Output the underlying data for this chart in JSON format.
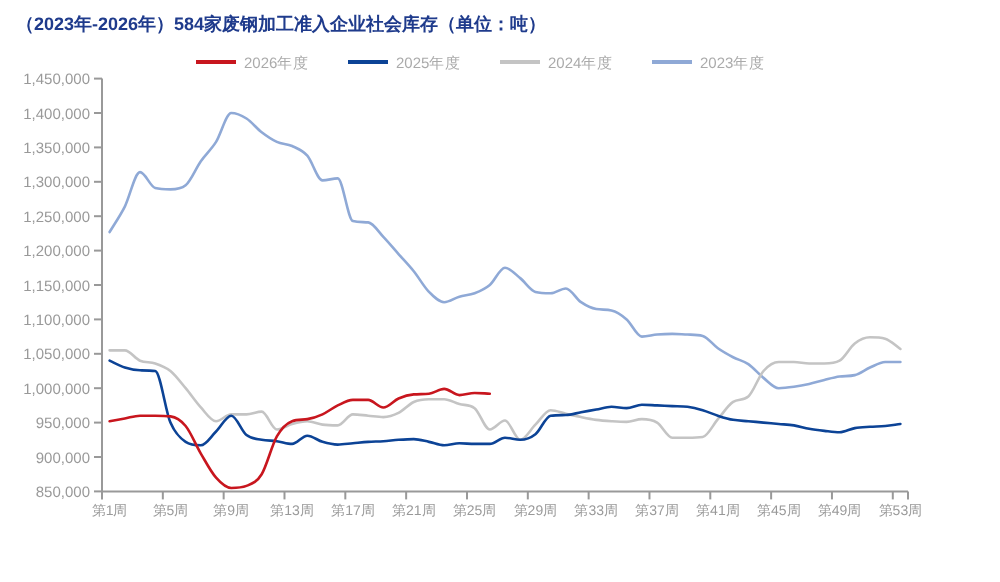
{
  "chart_data": {
    "type": "line",
    "title": "（2023年-2026年）584家废钢加工准入企业社会库存（单位：吨）",
    "categories": [
      "第1周",
      null,
      null,
      null,
      "第5周",
      null,
      null,
      null,
      "第9周",
      null,
      null,
      null,
      "第13周",
      null,
      null,
      null,
      "第17周",
      null,
      null,
      null,
      "第21周",
      null,
      null,
      null,
      "第25周",
      null,
      null,
      null,
      "第29周",
      null,
      null,
      null,
      "第33周",
      null,
      null,
      null,
      "第37周",
      null,
      null,
      null,
      "第41周",
      null,
      null,
      null,
      "第45周",
      null,
      null,
      null,
      "第49周",
      null,
      null,
      null,
      "第53周"
    ],
    "ylim": [
      850000,
      1450000
    ],
    "yticks": [
      {
        "value": 850000,
        "label": "850,000"
      },
      {
        "value": 900000,
        "label": "900,000"
      },
      {
        "value": 950000,
        "label": "950,000"
      },
      {
        "value": 1000000,
        "label": "1,000,000"
      },
      {
        "value": 1050000,
        "label": "1,050,000"
      },
      {
        "value": 1100000,
        "label": "1,100,000"
      },
      {
        "value": 1150000,
        "label": "1,150,000"
      },
      {
        "value": 1200000,
        "label": "1,200,000"
      },
      {
        "value": 1250000,
        "label": "1,250,000"
      },
      {
        "value": 1300000,
        "label": "1,300,000"
      },
      {
        "value": 1350000,
        "label": "1,350,000"
      },
      {
        "value": 1400000,
        "label": "1,400,000"
      },
      {
        "value": 1450000,
        "label": "1,450,000"
      }
    ],
    "legend": "top",
    "series": [
      {
        "name": "2026年度",
        "color": "#c8161e",
        "values": [
          952000,
          956000,
          960000,
          960000,
          959000,
          945000,
          905000,
          870000,
          855000,
          858000,
          875000,
          930000,
          952000,
          955000,
          962000,
          975000,
          983000,
          983000,
          972000,
          985000,
          991000,
          992000,
          999000,
          990000,
          993000,
          992000,
          null,
          null,
          null,
          null,
          null,
          null,
          null,
          null,
          null,
          null,
          null,
          null,
          null,
          null,
          null,
          null,
          null,
          null,
          null,
          null,
          null,
          null,
          null,
          null,
          null,
          null,
          null
        ]
      },
      {
        "name": "2025年度",
        "color": "#0c4396",
        "values": [
          1040000,
          1030000,
          1026000,
          1025000,
          950000,
          922000,
          917000,
          937000,
          960000,
          932000,
          925000,
          923000,
          919000,
          931000,
          922000,
          918000,
          920000,
          922000,
          923000,
          925000,
          926000,
          922000,
          917000,
          920000,
          919000,
          919000,
          928000,
          925000,
          933000,
          960000,
          961000,
          965000,
          969000,
          973000,
          971000,
          976000,
          975000,
          974000,
          973000,
          968000,
          960000,
          954000,
          952000,
          950000,
          948000,
          946000,
          941000,
          938000,
          936000,
          942000,
          944000,
          945000,
          948000
        ]
      },
      {
        "name": "2024年度",
        "color": "#c4c4c4",
        "values": [
          1055000,
          1055000,
          1040000,
          1036000,
          1025000,
          1000000,
          972000,
          952000,
          962000,
          962000,
          966000,
          940000,
          948000,
          952000,
          947000,
          946000,
          962000,
          960000,
          958000,
          964000,
          980000,
          984000,
          984000,
          977000,
          971000,
          940000,
          953000,
          925000,
          947000,
          968000,
          963000,
          958000,
          954000,
          952000,
          951000,
          955000,
          950000,
          928000,
          928000,
          929000,
          955000,
          980000,
          988000,
          1025000,
          1038000,
          1038000,
          1036000,
          1036000,
          1040000,
          1065000,
          1074000,
          1072000,
          1057000
        ]
      },
      {
        "name": "2023年度",
        "color": "#8fa9d6",
        "values": [
          1227000,
          1264000,
          1314000,
          1291000,
          1289000,
          1295000,
          1330000,
          1358000,
          1400000,
          1392000,
          1372000,
          1358000,
          1352000,
          1338000,
          1302000,
          1305000,
          1243000,
          1241000,
          1220000,
          1195000,
          1170000,
          1140000,
          1125000,
          1133000,
          1138000,
          1150000,
          1175000,
          1160000,
          1140000,
          1138000,
          1145000,
          1125000,
          1115000,
          1113000,
          1100000,
          1075000,
          1078000,
          1079000,
          1078000,
          1076000,
          1058000,
          1045000,
          1035000,
          1015000,
          1000000,
          1002000,
          1006000,
          1012000,
          1017000,
          1019000,
          1030000,
          1038000,
          1038000
        ]
      }
    ]
  }
}
